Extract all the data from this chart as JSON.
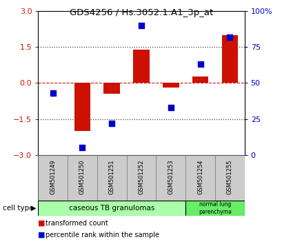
{
  "title": "GDS4256 / Hs.3052.1.A1_3p_at",
  "samples": [
    "GSM501249",
    "GSM501250",
    "GSM501251",
    "GSM501252",
    "GSM501253",
    "GSM501254",
    "GSM501255"
  ],
  "transformed_counts": [
    0.02,
    -2.0,
    -0.45,
    1.4,
    -0.18,
    0.28,
    2.0
  ],
  "percentile_ranks": [
    43,
    5,
    22,
    90,
    33,
    63,
    82
  ],
  "ylim_left": [
    -3,
    3
  ],
  "ylim_right": [
    0,
    100
  ],
  "yticks_left": [
    -3,
    -1.5,
    0,
    1.5,
    3
  ],
  "yticks_right": [
    0,
    25,
    50,
    75,
    100
  ],
  "bar_color": "#cc1100",
  "dot_color": "#0000cc",
  "bar_width": 0.55,
  "dot_size": 35,
  "group1_label": "caseous TB granulomas",
  "group2_label": "normal lung\nparenchyma",
  "group1_color": "#aaffaa",
  "group2_color": "#66ee66",
  "cell_type_label": "cell type",
  "legend_red_label": "transformed count",
  "legend_blue_label": "percentile rank within the sample",
  "hline_color": "#cc1100",
  "dotted_line_color": "#444444",
  "bg_color": "#ffffff",
  "tick_color_left": "#cc1100",
  "tick_color_right": "#0000cc",
  "label_box_color": "#cccccc",
  "label_box_edge": "#888888"
}
